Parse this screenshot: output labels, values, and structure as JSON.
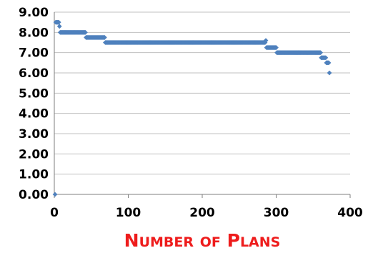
{
  "chart_data": {
    "type": "scatter",
    "xlabel": "Number of Plans",
    "xlabel_display": {
      "N": "N",
      "umber": "UMBER",
      "of": "OF",
      "P": "P",
      "lans": "LANS"
    },
    "ylabel": "",
    "title": "",
    "xlim": [
      0,
      400
    ],
    "ylim": [
      0,
      9
    ],
    "x_ticks": [
      "0",
      "100",
      "200",
      "300",
      "400"
    ],
    "y_ticks": [
      "0.00",
      "1.00",
      "2.00",
      "3.00",
      "4.00",
      "5.00",
      "6.00",
      "7.00",
      "8.00",
      "9.00"
    ],
    "grid": "horizontal",
    "marker": "diamond",
    "series_color": "#4f81bd",
    "segments": [
      {
        "x_from": 1,
        "x_to": 1,
        "step": 1,
        "y": 0.0
      },
      {
        "x_from": 2,
        "x_to": 6,
        "step": 1,
        "y": 8.5
      },
      {
        "x_from": 7,
        "x_to": 7,
        "step": 1,
        "y": 8.3
      },
      {
        "x_from": 8,
        "x_to": 42,
        "step": 1,
        "y": 8.0
      },
      {
        "x_from": 43,
        "x_to": 68,
        "step": 1,
        "y": 7.75
      },
      {
        "x_from": 69,
        "x_to": 285,
        "step": 1,
        "y": 7.5
      },
      {
        "x_from": 286,
        "x_to": 286,
        "step": 1,
        "y": 7.6
      },
      {
        "x_from": 287,
        "x_to": 300,
        "step": 1,
        "y": 7.25
      },
      {
        "x_from": 301,
        "x_to": 360,
        "step": 1,
        "y": 7.0
      },
      {
        "x_from": 361,
        "x_to": 367,
        "step": 1,
        "y": 6.75
      },
      {
        "x_from": 368,
        "x_to": 371,
        "step": 1,
        "y": 6.5
      },
      {
        "x_from": 372,
        "x_to": 372,
        "step": 1,
        "y": 6.0
      }
    ]
  }
}
